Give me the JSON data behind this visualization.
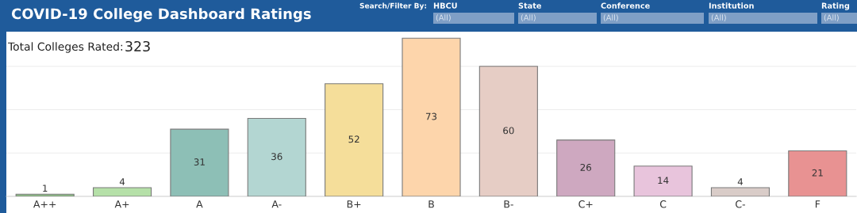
{
  "chart_data": {
    "type": "bar",
    "title": "COVID-19 College Dashboard Ratings",
    "categories": [
      "A++",
      "A+",
      "A",
      "A-",
      "B+",
      "B",
      "B-",
      "C+",
      "C",
      "C-",
      "F"
    ],
    "values": [
      1,
      4,
      31,
      36,
      52,
      73,
      60,
      26,
      14,
      4,
      21
    ],
    "colors": [
      "#8fbf87",
      "#b5e0a8",
      "#8dbfb6",
      "#b3d6d2",
      "#f5de9a",
      "#fdd5ab",
      "#e6cdc5",
      "#cea8c0",
      "#e8c4dc",
      "#d9ccc8",
      "#e89292"
    ],
    "data_labels": true,
    "ylim": [
      0,
      76
    ],
    "yticks": [
      {
        "value": 20,
        "label": null
      },
      {
        "value": 40,
        "label": null
      },
      {
        "value": 60,
        "label": null
      }
    ],
    "grid": "y",
    "tick_labels": "x",
    "annotations": [
      "Total Colleges Rated:",
      "323",
      "Search/Filter By:",
      "HBCU",
      "(All)",
      "State",
      "(All)",
      "Conference",
      "(All)",
      "Institution",
      "(All)",
      "Rating",
      "(All)"
    ]
  }
}
